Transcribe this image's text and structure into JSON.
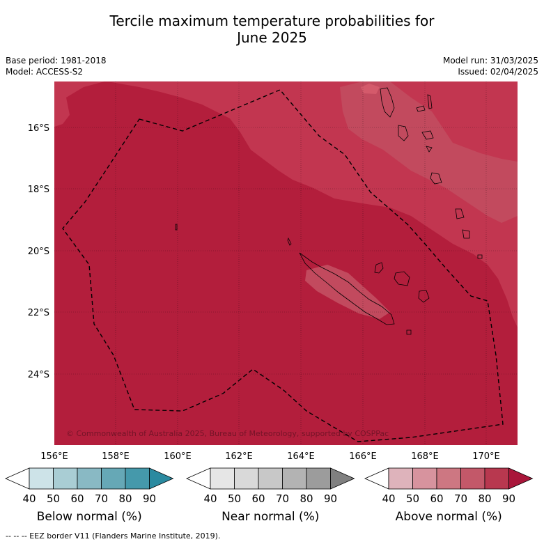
{
  "title": {
    "line1": "Tercile maximum temperature probabilities for",
    "line2": "June 2025"
  },
  "meta": {
    "base_period": "Base period: 1981-2018",
    "model": "Model: ACCESS-S2",
    "model_run": "Model run: 31/03/2025",
    "issued": "Issued: 02/04/2025"
  },
  "map": {
    "lon_ticks": [
      "156°E",
      "158°E",
      "160°E",
      "162°E",
      "164°E",
      "166°E",
      "168°E",
      "170°E"
    ],
    "lat_ticks": [
      "16°S",
      "18°S",
      "20°S",
      "22°S",
      "24°S"
    ],
    "copyright": "© Commonwealth of Australia 2025, Bureau of Meteorology, supported by COSPPac",
    "colors": {
      "above_80": "#b31e3c",
      "above_70": "#c23650",
      "above_60": "#c24a5e",
      "ocean_line": "#000000"
    }
  },
  "colorbars": [
    {
      "title": "Below normal (%)",
      "ticks": [
        "40",
        "50",
        "60",
        "70",
        "80",
        "90"
      ],
      "colors": [
        "#ffffff",
        "#cde3e8",
        "#a9cdd4",
        "#89b9c4",
        "#66a8b6",
        "#4599ab",
        "#2a8aa0"
      ]
    },
    {
      "title": "Near normal (%)",
      "ticks": [
        "40",
        "50",
        "60",
        "70",
        "80",
        "90"
      ],
      "colors": [
        "#ffffff",
        "#e6e6e6",
        "#d9d9d9",
        "#c8c8c8",
        "#b3b3b3",
        "#9c9c9c",
        "#808080"
      ]
    },
    {
      "title": "Above normal (%)",
      "ticks": [
        "40",
        "50",
        "60",
        "70",
        "80",
        "90"
      ],
      "colors": [
        "#ffffff",
        "#deb3bb",
        "#d7939e",
        "#cd7782",
        "#c35869",
        "#b8384f",
        "#a9163a"
      ]
    }
  ],
  "footer": "--  --  -- EEZ border V11 (Flanders Marine Institute, 2019)."
}
